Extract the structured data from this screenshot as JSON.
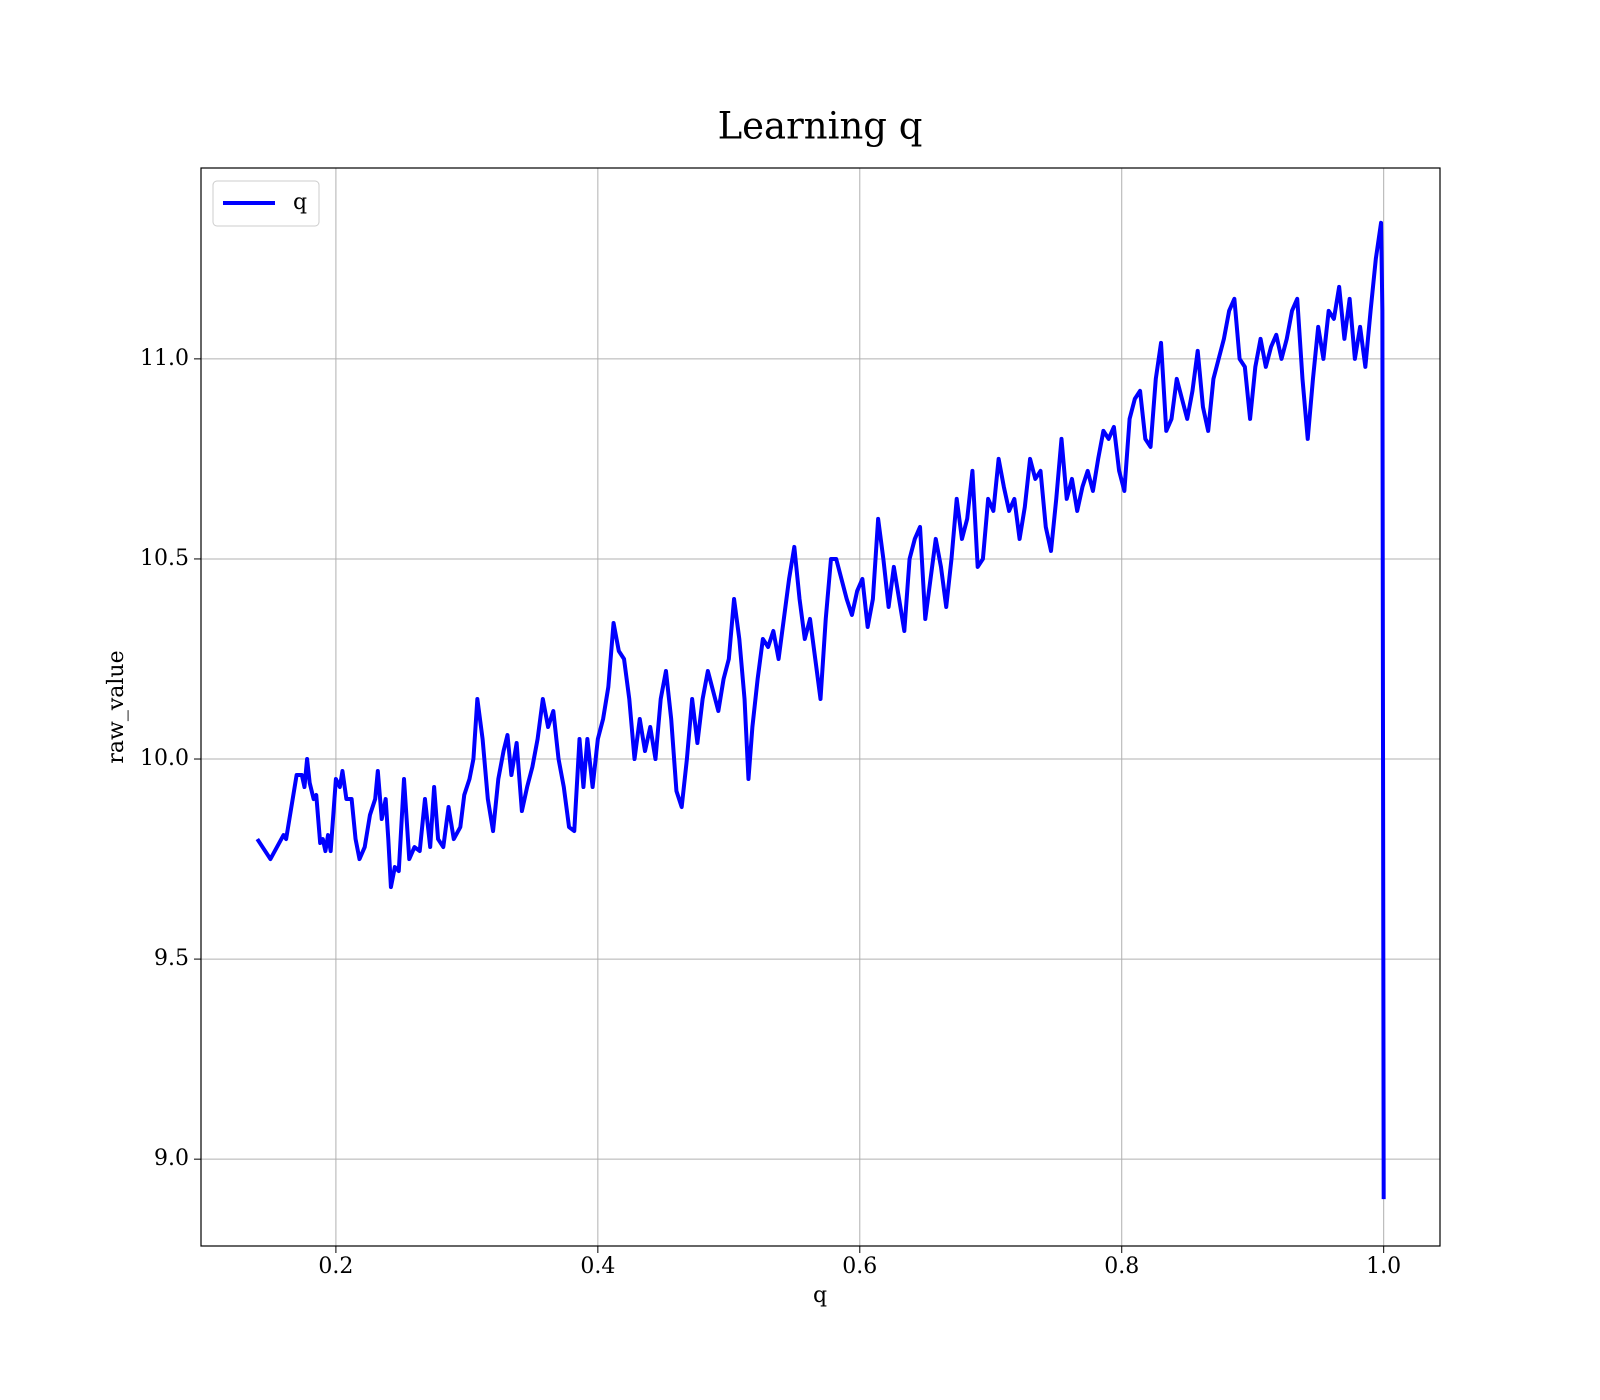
{
  "chart_data": {
    "type": "line",
    "title": "Learning q",
    "xlabel": "q",
    "ylabel": "raw_value",
    "x": [
      0.14,
      0.15,
      0.16,
      0.162,
      0.17,
      0.174,
      0.176,
      0.178,
      0.18,
      0.183,
      0.185,
      0.188,
      0.19,
      0.192,
      0.194,
      0.196,
      0.2,
      0.203,
      0.205,
      0.208,
      0.212,
      0.215,
      0.218,
      0.222,
      0.226,
      0.23,
      0.232,
      0.235,
      0.238,
      0.24,
      0.242,
      0.245,
      0.248,
      0.252,
      0.256,
      0.26,
      0.264,
      0.268,
      0.272,
      0.275,
      0.278,
      0.282,
      0.286,
      0.29,
      0.295,
      0.298,
      0.302,
      0.305,
      0.308,
      0.312,
      0.316,
      0.32,
      0.324,
      0.328,
      0.331,
      0.334,
      0.338,
      0.342,
      0.346,
      0.35,
      0.354,
      0.358,
      0.362,
      0.366,
      0.37,
      0.374,
      0.378,
      0.382,
      0.386,
      0.389,
      0.392,
      0.396,
      0.4,
      0.404,
      0.408,
      0.412,
      0.416,
      0.42,
      0.424,
      0.428,
      0.432,
      0.436,
      0.44,
      0.444,
      0.448,
      0.452,
      0.456,
      0.46,
      0.464,
      0.468,
      0.472,
      0.476,
      0.48,
      0.484,
      0.488,
      0.492,
      0.496,
      0.5,
      0.504,
      0.508,
      0.512,
      0.515,
      0.518,
      0.522,
      0.526,
      0.53,
      0.534,
      0.538,
      0.542,
      0.546,
      0.55,
      0.554,
      0.558,
      0.562,
      0.566,
      0.57,
      0.574,
      0.578,
      0.582,
      0.586,
      0.59,
      0.594,
      0.598,
      0.602,
      0.606,
      0.61,
      0.614,
      0.618,
      0.622,
      0.626,
      0.63,
      0.634,
      0.638,
      0.642,
      0.646,
      0.65,
      0.654,
      0.658,
      0.662,
      0.666,
      0.67,
      0.674,
      0.678,
      0.682,
      0.686,
      0.69,
      0.694,
      0.698,
      0.702,
      0.706,
      0.71,
      0.714,
      0.718,
      0.722,
      0.726,
      0.73,
      0.734,
      0.738,
      0.742,
      0.746,
      0.75,
      0.754,
      0.758,
      0.762,
      0.766,
      0.77,
      0.774,
      0.778,
      0.782,
      0.786,
      0.79,
      0.794,
      0.798,
      0.802,
      0.806,
      0.81,
      0.814,
      0.818,
      0.822,
      0.826,
      0.83,
      0.834,
      0.838,
      0.842,
      0.846,
      0.85,
      0.854,
      0.858,
      0.862,
      0.866,
      0.87,
      0.874,
      0.878,
      0.882,
      0.886,
      0.89,
      0.894,
      0.898,
      0.902,
      0.906,
      0.91,
      0.914,
      0.918,
      0.922,
      0.926,
      0.93,
      0.934,
      0.938,
      0.942,
      0.946,
      0.95,
      0.954,
      0.958,
      0.962,
      0.966,
      0.97,
      0.974,
      0.978,
      0.982,
      0.986,
      0.99,
      0.994,
      0.998,
      0.999,
      1.0
    ],
    "series": [
      {
        "name": "q",
        "color": "#0000ff",
        "values": [
          9.8,
          9.75,
          9.81,
          9.8,
          9.96,
          9.96,
          9.93,
          10.0,
          9.94,
          9.9,
          9.91,
          9.79,
          9.8,
          9.77,
          9.81,
          9.77,
          9.95,
          9.93,
          9.97,
          9.9,
          9.9,
          9.8,
          9.75,
          9.78,
          9.86,
          9.9,
          9.97,
          9.85,
          9.9,
          9.8,
          9.68,
          9.73,
          9.72,
          9.95,
          9.75,
          9.78,
          9.77,
          9.9,
          9.78,
          9.93,
          9.8,
          9.78,
          9.88,
          9.8,
          9.83,
          9.91,
          9.95,
          10.0,
          10.15,
          10.05,
          9.9,
          9.82,
          9.95,
          10.02,
          10.06,
          9.96,
          10.04,
          9.87,
          9.93,
          9.98,
          10.05,
          10.15,
          10.08,
          10.12,
          10.0,
          9.93,
          9.83,
          9.82,
          10.05,
          9.93,
          10.05,
          9.93,
          10.05,
          10.1,
          10.18,
          10.34,
          10.27,
          10.25,
          10.15,
          10.0,
          10.1,
          10.02,
          10.08,
          10.0,
          10.15,
          10.22,
          10.1,
          9.92,
          9.88,
          10.0,
          10.15,
          10.04,
          10.15,
          10.22,
          10.17,
          10.12,
          10.2,
          10.25,
          10.4,
          10.3,
          10.15,
          9.95,
          10.08,
          10.2,
          10.3,
          10.28,
          10.32,
          10.25,
          10.35,
          10.45,
          10.53,
          10.4,
          10.3,
          10.35,
          10.25,
          10.15,
          10.35,
          10.5,
          10.5,
          10.45,
          10.4,
          10.36,
          10.42,
          10.45,
          10.33,
          10.4,
          10.6,
          10.5,
          10.38,
          10.48,
          10.4,
          10.32,
          10.5,
          10.55,
          10.58,
          10.35,
          10.45,
          10.55,
          10.48,
          10.38,
          10.5,
          10.65,
          10.55,
          10.6,
          10.72,
          10.48,
          10.5,
          10.65,
          10.62,
          10.75,
          10.68,
          10.62,
          10.65,
          10.55,
          10.63,
          10.75,
          10.7,
          10.72,
          10.58,
          10.52,
          10.65,
          10.8,
          10.65,
          10.7,
          10.62,
          10.68,
          10.72,
          10.67,
          10.75,
          10.82,
          10.8,
          10.83,
          10.72,
          10.67,
          10.85,
          10.9,
          10.92,
          10.8,
          10.78,
          10.95,
          11.04,
          10.82,
          10.85,
          10.95,
          10.9,
          10.85,
          10.92,
          11.02,
          10.88,
          10.82,
          10.95,
          11.0,
          11.05,
          11.12,
          11.15,
          11.0,
          10.98,
          10.85,
          10.98,
          11.05,
          10.98,
          11.03,
          11.06,
          11.0,
          11.05,
          11.12,
          11.15,
          10.95,
          10.8,
          10.95,
          11.08,
          11.0,
          11.12,
          11.1,
          11.18,
          11.05,
          11.15,
          11.0,
          11.08,
          10.98,
          11.12,
          11.25,
          11.34,
          11.12,
          8.9
        ]
      }
    ],
    "xlim": [
      0.097,
      1.043
    ],
    "ylim": [
      8.783,
      11.477
    ],
    "xticks": [
      0.2,
      0.4,
      0.6,
      0.8,
      {
        "value": 1,
        "label": "1.0"
      }
    ],
    "yticks": [
      {
        "value": 9,
        "label": "9.0"
      },
      9.5,
      {
        "value": 10,
        "label": "10.0"
      },
      10.5,
      {
        "value": 11,
        "label": "11.0"
      }
    ],
    "grid": true,
    "legend": "upper left"
  }
}
